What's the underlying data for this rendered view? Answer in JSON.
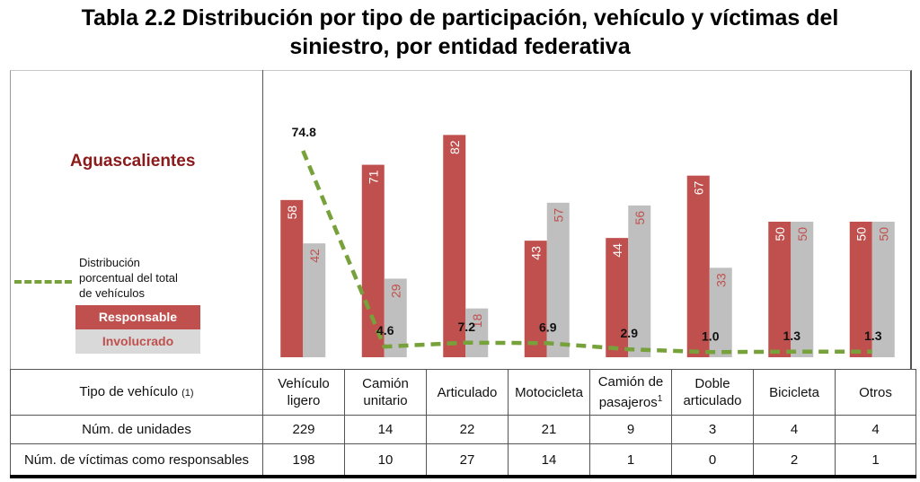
{
  "title": {
    "line1": "Tabla 2.2 Distribución por tipo de participación, vehículo y víctimas del",
    "line2": "siniestro, por entidad federativa"
  },
  "entity": "Aguascalientes",
  "legend": {
    "line_label_1": "Distribución",
    "line_label_2": "porcentual del total",
    "line_label_3": "de vehículos",
    "responsable": "Responsable",
    "involucrado": "Involucrado"
  },
  "colors": {
    "responsable": "#c0504d",
    "involucrado": "#bfbfbf",
    "line": "#77a13a",
    "entity": "#8b1a1a"
  },
  "chart_data": {
    "type": "bar",
    "title": "Tabla 2.2 Distribución por tipo de participación, vehículo y víctimas del siniestro, por entidad federativa",
    "categories": [
      "Vehículo ligero",
      "Camión unitario",
      "Articulado",
      "Motocicleta",
      "Camión de pasajeros",
      "Doble articulado",
      "Bicicleta",
      "Otros"
    ],
    "series": [
      {
        "name": "Responsable",
        "type": "bar",
        "values": [
          58,
          71,
          82,
          43,
          44,
          67,
          50,
          50
        ]
      },
      {
        "name": "Involucrado",
        "type": "bar",
        "values": [
          42,
          29,
          18,
          57,
          56,
          33,
          50,
          50
        ]
      },
      {
        "name": "Distribución porcentual del total de vehículos",
        "type": "line",
        "values": [
          74.8,
          4.6,
          7.2,
          6.9,
          2.9,
          1.0,
          1.3,
          1.3
        ]
      }
    ],
    "ylim": [
      0,
      100
    ],
    "grid": false,
    "legend_position": "left"
  },
  "table": {
    "header_label": "Tipo de vehículo",
    "header_note": "(1)",
    "columns": [
      {
        "line1": "Vehículo",
        "line2": "ligero",
        "sup": ""
      },
      {
        "line1": "Camión",
        "line2": "unitario",
        "sup": ""
      },
      {
        "line1": "Articulado",
        "line2": "",
        "sup": ""
      },
      {
        "line1": "Motocicleta",
        "line2": "",
        "sup": ""
      },
      {
        "line1": "Camión de",
        "line2": "pasajeros",
        "sup": "1"
      },
      {
        "line1": "Doble",
        "line2": "articulado",
        "sup": ""
      },
      {
        "line1": "Bicicleta",
        "line2": "",
        "sup": ""
      },
      {
        "line1": "Otros",
        "line2": "",
        "sup": ""
      }
    ],
    "rows": [
      {
        "label": "Núm. de unidades",
        "values": [
          "229",
          "14",
          "22",
          "21",
          "9",
          "3",
          "4",
          "4"
        ]
      },
      {
        "label": "Núm. de víctimas como responsables",
        "values": [
          "198",
          "10",
          "27",
          "14",
          "1",
          "0",
          "2",
          "1"
        ]
      }
    ]
  }
}
